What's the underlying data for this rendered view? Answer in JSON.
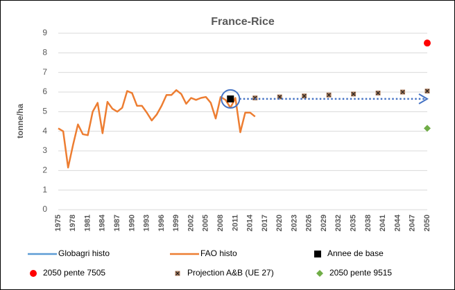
{
  "chart_data": {
    "type": "line",
    "title": "France-Rice",
    "y_label": "tonne/ha",
    "xlim": [
      1975,
      2050
    ],
    "xticks": [
      1975,
      1978,
      1981,
      1984,
      1987,
      1990,
      1993,
      1996,
      1999,
      2002,
      2005,
      2008,
      2011,
      2014,
      2017,
      2020,
      2023,
      2026,
      2029,
      2032,
      2035,
      2038,
      2041,
      2044,
      2047,
      2050
    ],
    "ylim": [
      0,
      9
    ],
    "yticks": [
      0,
      1,
      2,
      3,
      4,
      5,
      6,
      7,
      8,
      9
    ],
    "grid": true,
    "legend": "bottom",
    "series": [
      {
        "name": "Globagri histo",
        "color": "#5b9bd5",
        "marker": "line",
        "x": [],
        "values": []
      },
      {
        "name": "FAO histo",
        "color": "#ed7d31",
        "marker": "line",
        "x": [
          1975,
          1976,
          1977,
          1978,
          1979,
          1980,
          1981,
          1982,
          1983,
          1984,
          1985,
          1986,
          1987,
          1988,
          1989,
          1990,
          1991,
          1992,
          1993,
          1994,
          1995,
          1996,
          1997,
          1998,
          1999,
          2000,
          2001,
          2002,
          2003,
          2004,
          2005,
          2006,
          2007,
          2008,
          2009,
          2010,
          2011,
          2012,
          2013,
          2014,
          2015
        ],
        "values": [
          4.15,
          4.0,
          2.15,
          3.3,
          4.35,
          3.85,
          3.8,
          5.0,
          5.45,
          3.9,
          5.5,
          5.15,
          5.0,
          5.2,
          6.05,
          5.95,
          5.3,
          5.3,
          4.95,
          4.55,
          4.85,
          5.3,
          5.85,
          5.85,
          6.1,
          5.9,
          5.4,
          5.7,
          5.6,
          5.7,
          5.75,
          5.45,
          4.65,
          5.75,
          5.6,
          5.2,
          5.7,
          3.95,
          4.95,
          4.95,
          4.75
        ]
      },
      {
        "name": "Annee de base",
        "color": "#000000",
        "marker": "square",
        "x": [
          2010
        ],
        "values": [
          5.65
        ]
      },
      {
        "name": "2050 pente 7505",
        "color": "#ff0000",
        "marker": "circle",
        "x": [
          2050
        ],
        "values": [
          8.5
        ]
      },
      {
        "name": "Projection A&B (UE 27)",
        "color": "#b08060",
        "marker": "xsquare",
        "x": [
          2015,
          2020,
          2025,
          2030,
          2035,
          2040,
          2045,
          2050
        ],
        "values": [
          5.7,
          5.75,
          5.8,
          5.85,
          5.9,
          5.95,
          6.0,
          6.05
        ]
      },
      {
        "name": "2050 pente 9515",
        "color": "#70ad47",
        "marker": "diamond",
        "x": [
          2050
        ],
        "values": [
          4.15
        ]
      }
    ]
  }
}
